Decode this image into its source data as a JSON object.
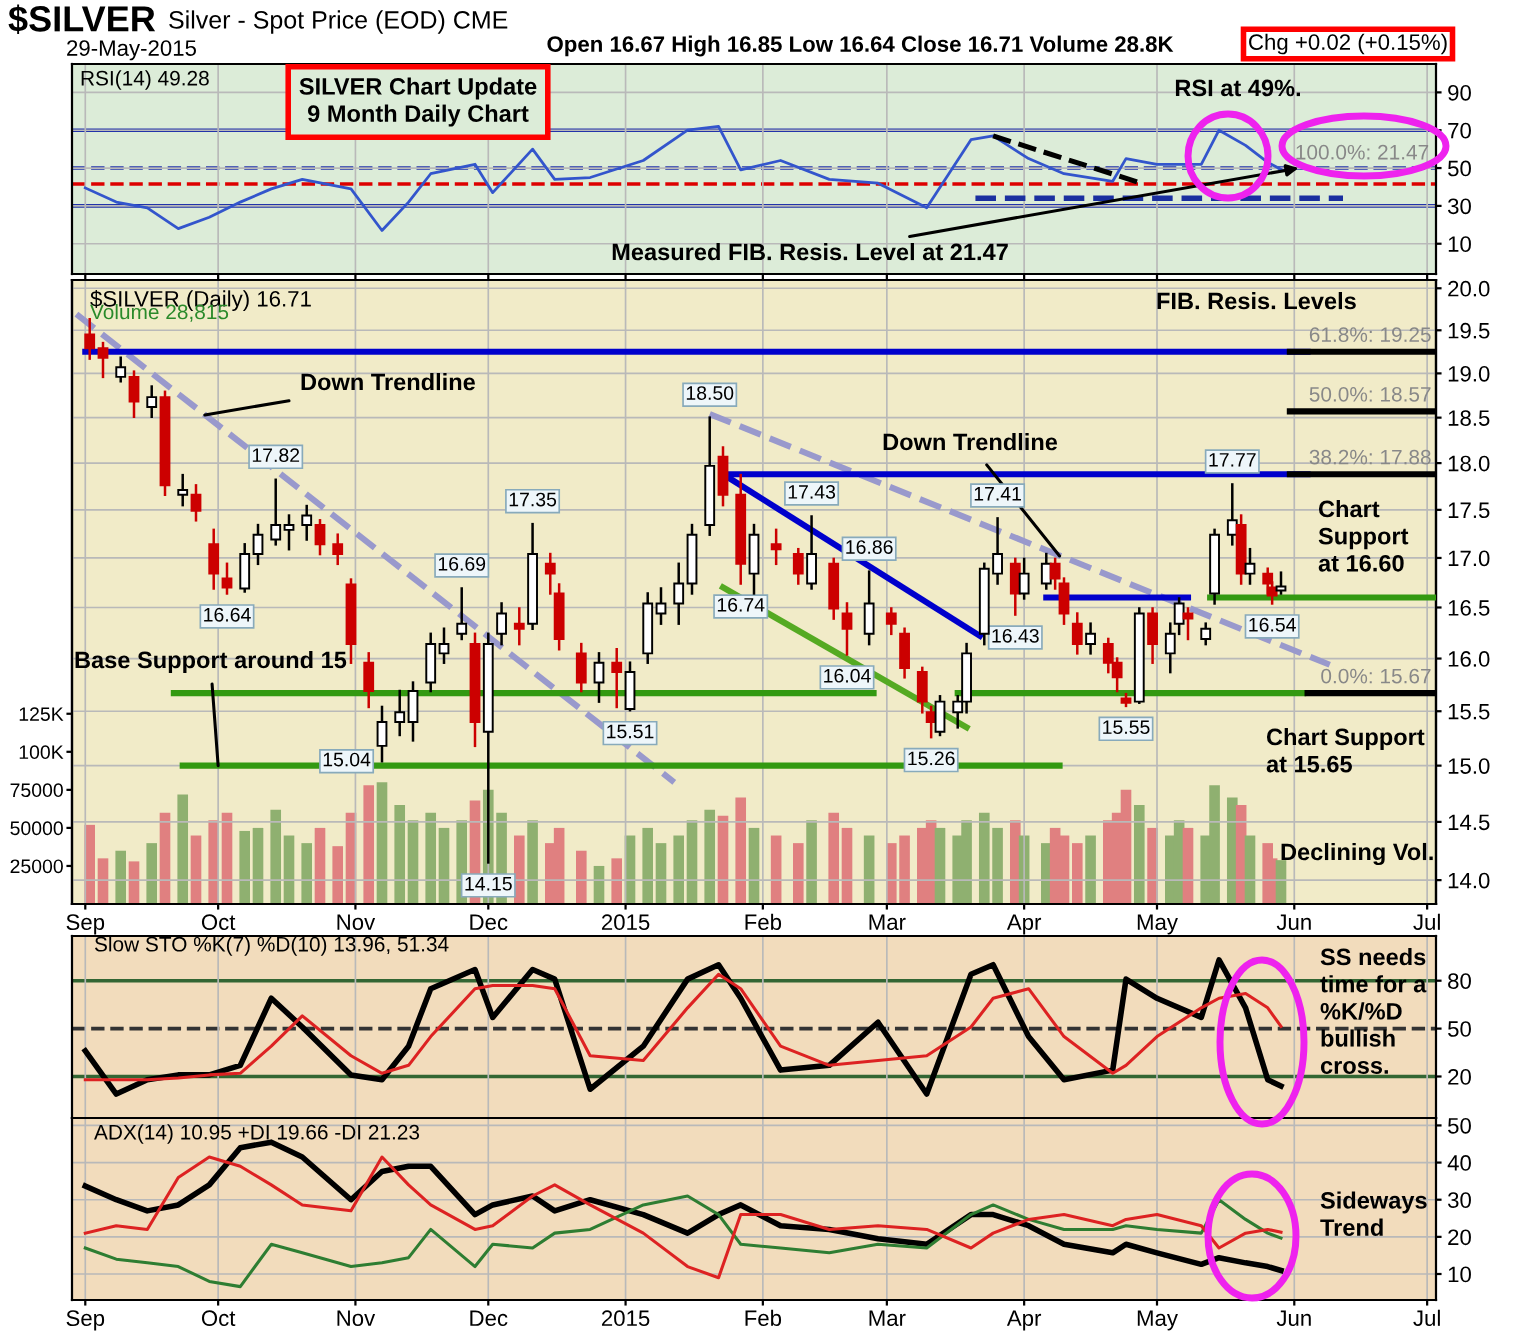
{
  "chart_data": [
    {
      "type": "line",
      "title": "$SILVER",
      "subtitle": "Silver - Spot Price (EOD) CME",
      "x": [
        "2014-09-01",
        "2014-09-08",
        "2014-09-15",
        "2014-09-22",
        "2014-09-29",
        "2014-10-06",
        "2014-10-13",
        "2014-10-20",
        "2014-10-31",
        "2014-11-07",
        "2014-11-13",
        "2014-11-18",
        "2014-11-28",
        "2014-12-02",
        "2014-12-11",
        "2014-12-16",
        "2014-12-24",
        "2015-01-05",
        "2015-01-15",
        "2015-01-22",
        "2015-01-27",
        "2015-02-05",
        "2015-02-16",
        "2015-02-27",
        "2015-03-10",
        "2015-03-20",
        "2015-03-25",
        "2015-04-02",
        "2015-04-10",
        "2015-04-21",
        "2015-04-24",
        "2015-05-01",
        "2015-05-11",
        "2015-05-15",
        "2015-05-21",
        "2015-05-26",
        "2015-05-29"
      ],
      "series": [
        {
          "color": "#3355cc",
          "values": [
            39.5,
            32,
            29,
            18,
            24,
            32,
            39,
            44,
            39,
            17,
            32,
            47,
            52,
            37,
            60,
            44,
            45,
            54,
            70,
            72,
            49,
            54,
            44,
            42,
            29,
            65,
            67,
            55,
            47,
            43,
            55,
            52,
            52,
            70,
            62,
            53,
            49.28
          ]
        },
        {
          "x": [
            "2015-03-25",
            "2015-04-28"
          ],
          "values": [
            67,
            41.6
          ],
          "color": "#000000",
          "line_style": "dashed"
        },
        {
          "x": [
            "2015-03-21",
            "2015-06-12"
          ],
          "values": [
            34,
            34
          ],
          "color": "#1a2fa0",
          "line_style": "dashed"
        }
      ],
      "xlim": [
        "2014-08-29",
        "2015-07-03"
      ],
      "xticks": [
        {
          "value": "2014-09-01",
          "label": null
        },
        {
          "value": "2014-10-01",
          "label": null
        },
        {
          "value": "2014-11-01",
          "label": null
        },
        {
          "value": "2014-12-01",
          "label": null
        },
        {
          "value": "2015-01-01",
          "label": null
        },
        {
          "value": "2015-02-01",
          "label": null
        },
        {
          "value": "2015-03-01",
          "label": null
        },
        {
          "value": "2015-04-01",
          "label": null
        },
        {
          "value": "2015-05-01",
          "label": null
        },
        {
          "value": "2015-06-01",
          "label": null
        },
        {
          "value": "2015-07-01",
          "label": null
        }
      ],
      "ylim": [
        -6,
        105
      ],
      "yticks": [
        10,
        30,
        50,
        70,
        90
      ],
      "ref_lines": [
        {
          "axis": "y",
          "value": 70,
          "color": "#2233aa"
        },
        {
          "axis": "y",
          "value": 30,
          "color": "#2233aa"
        },
        {
          "axis": "y",
          "value": 50,
          "color": "#2233aa",
          "line_style": "dashed"
        },
        {
          "axis": "y",
          "value": 41.6,
          "color": "#dd0000",
          "line_style": "dashed"
        }
      ],
      "tick_labels": "y",
      "grid": true,
      "annotations": [
        "29-May-2015",
        "Open 16.67 High 16.85 Low 16.64 Close 16.71 Volume 28.8K",
        "Chg +0.02 (+0.15%)",
        "RSI(14) 49.28",
        "SILVER Chart Update\n9 Month Daily Chart",
        "RSI at 49%.",
        "100.0%: 21.47",
        {
          "text": "Measured FIB. Resis. Level at 21.47",
          "x": "2015-06-02",
          "y": 50
        }
      ]
    },
    {
      "type": "candlestick",
      "x": [
        "2014-09-02",
        "2014-09-05",
        "2014-09-09",
        "2014-09-12",
        "2014-09-16",
        "2014-09-19",
        "2014-09-23",
        "2014-09-26",
        "2014-09-30",
        "2014-10-03",
        "2014-10-07",
        "2014-10-10",
        "2014-10-14",
        "2014-10-17",
        "2014-10-21",
        "2014-10-24",
        "2014-10-28",
        "2014-10-31",
        "2014-11-04",
        "2014-11-07",
        "2014-11-11",
        "2014-11-14",
        "2014-11-18",
        "2014-11-21",
        "2014-11-25",
        "2014-11-28",
        "2014-12-01",
        "2014-12-04",
        "2014-12-08",
        "2014-12-11",
        "2014-12-15",
        "2014-12-17",
        "2014-12-22",
        "2014-12-26",
        "2014-12-30",
        "2015-01-02",
        "2015-01-06",
        "2015-01-09",
        "2015-01-13",
        "2015-01-16",
        "2015-01-20",
        "2015-01-23",
        "2015-01-27",
        "2015-01-30",
        "2015-02-04",
        "2015-02-09",
        "2015-02-12",
        "2015-02-17",
        "2015-02-20",
        "2015-02-25",
        "2015-03-02",
        "2015-03-05",
        "2015-03-09",
        "2015-03-11",
        "2015-03-13",
        "2015-03-17",
        "2015-03-19",
        "2015-03-23",
        "2015-03-26",
        "2015-03-30",
        "2015-04-01",
        "2015-04-06",
        "2015-04-08",
        "2015-04-10",
        "2015-04-13",
        "2015-04-16",
        "2015-04-20",
        "2015-04-22",
        "2015-04-24",
        "2015-04-27",
        "2015-04-30",
        "2015-05-04",
        "2015-05-06",
        "2015-05-08",
        "2015-05-12",
        "2015-05-14",
        "2015-05-18",
        "2015-05-20",
        "2015-05-22",
        "2015-05-26",
        "2015-05-27",
        "2015-05-29"
      ],
      "log": true,
      "ohlc": [
        [
          19.45,
          19.63,
          19.17,
          19.29
        ],
        [
          19.29,
          19.35,
          18.96,
          19.18
        ],
        [
          18.96,
          19.18,
          18.91,
          19.07
        ],
        [
          18.96,
          19.02,
          18.51,
          18.68
        ],
        [
          18.62,
          18.85,
          18.51,
          18.73
        ],
        [
          18.73,
          18.79,
          17.66,
          17.76
        ],
        [
          17.66,
          17.87,
          17.55,
          17.71
        ],
        [
          17.66,
          17.76,
          17.39,
          17.49
        ],
        [
          17.14,
          17.29,
          16.69,
          16.84
        ],
        [
          16.79,
          16.94,
          16.64,
          16.7
        ],
        [
          16.69,
          17.14,
          16.66,
          17.04
        ],
        [
          17.04,
          17.34,
          16.94,
          17.24
        ],
        [
          17.19,
          17.82,
          17.14,
          17.34
        ],
        [
          17.29,
          17.44,
          17.09,
          17.34
        ],
        [
          17.34,
          17.54,
          17.19,
          17.44
        ],
        [
          17.34,
          17.39,
          17.04,
          17.14
        ],
        [
          17.14,
          17.24,
          16.94,
          17.04
        ],
        [
          16.73,
          16.78,
          15.96,
          16.14
        ],
        [
          15.96,
          16.05,
          15.54,
          15.69
        ],
        [
          15.18,
          15.54,
          15.04,
          15.4
        ],
        [
          15.4,
          15.69,
          15.28,
          15.49
        ],
        [
          15.4,
          15.77,
          15.23,
          15.69
        ],
        [
          15.77,
          16.24,
          15.69,
          16.14
        ],
        [
          16.05,
          16.29,
          15.96,
          16.14
        ],
        [
          16.24,
          16.69,
          16.19,
          16.34
        ],
        [
          16.14,
          16.24,
          15.18,
          15.4
        ],
        [
          15.31,
          16.24,
          14.15,
          16.14
        ],
        [
          16.24,
          16.54,
          16.14,
          16.44
        ],
        [
          16.34,
          16.49,
          16.14,
          16.29
        ],
        [
          16.34,
          17.35,
          16.29,
          17.04
        ],
        [
          16.94,
          17.04,
          16.64,
          16.84
        ],
        [
          16.64,
          16.73,
          16.09,
          16.19
        ],
        [
          16.05,
          16.14,
          15.69,
          15.77
        ],
        [
          15.77,
          16.05,
          15.59,
          15.96
        ],
        [
          15.96,
          16.09,
          15.54,
          15.87
        ],
        [
          15.52,
          15.96,
          15.51,
          15.87
        ],
        [
          16.05,
          16.64,
          15.96,
          16.54
        ],
        [
          16.44,
          16.69,
          16.34,
          16.54
        ],
        [
          16.54,
          16.94,
          16.34,
          16.74
        ],
        [
          16.74,
          17.34,
          16.64,
          17.24
        ],
        [
          17.34,
          18.5,
          17.24,
          17.97
        ],
        [
          18.07,
          18.17,
          17.55,
          17.66
        ],
        [
          17.66,
          17.87,
          16.74,
          16.94
        ],
        [
          16.84,
          17.34,
          16.64,
          17.24
        ],
        [
          17.14,
          17.29,
          16.94,
          17.09
        ],
        [
          17.04,
          17.09,
          16.74,
          16.84
        ],
        [
          16.74,
          17.43,
          16.69,
          17.04
        ],
        [
          16.94,
          16.99,
          16.39,
          16.49
        ],
        [
          16.44,
          16.54,
          16.04,
          16.29
        ],
        [
          16.24,
          16.86,
          16.14,
          16.54
        ],
        [
          16.44,
          16.49,
          16.24,
          16.34
        ],
        [
          16.24,
          16.29,
          15.82,
          15.91
        ],
        [
          15.87,
          15.91,
          15.49,
          15.59
        ],
        [
          15.49,
          15.54,
          15.26,
          15.4
        ],
        [
          15.31,
          15.64,
          15.28,
          15.59
        ],
        [
          15.49,
          15.64,
          15.35,
          15.59
        ],
        [
          15.59,
          16.14,
          15.49,
          16.05
        ],
        [
          16.24,
          16.94,
          16.14,
          16.89
        ],
        [
          16.84,
          17.41,
          16.74,
          17.04
        ],
        [
          16.94,
          16.99,
          16.43,
          16.64
        ],
        [
          16.64,
          16.99,
          16.59,
          16.84
        ],
        [
          16.74,
          17.04,
          16.69,
          16.94
        ],
        [
          16.94,
          16.99,
          16.69,
          16.79
        ],
        [
          16.74,
          16.79,
          16.34,
          16.44
        ],
        [
          16.34,
          16.44,
          16.05,
          16.14
        ],
        [
          16.14,
          16.34,
          16.05,
          16.24
        ],
        [
          16.14,
          16.19,
          15.87,
          15.96
        ],
        [
          15.96,
          16.0,
          15.69,
          15.82
        ],
        [
          15.62,
          15.66,
          15.55,
          15.58
        ],
        [
          15.59,
          16.49,
          15.58,
          16.44
        ],
        [
          16.44,
          16.49,
          15.96,
          16.14
        ],
        [
          16.05,
          16.34,
          15.87,
          16.24
        ],
        [
          16.34,
          16.59,
          16.24,
          16.54
        ],
        [
          16.44,
          16.49,
          16.19,
          16.39
        ],
        [
          16.19,
          16.34,
          16.14,
          16.29
        ],
        [
          16.64,
          17.29,
          16.54,
          17.24
        ],
        [
          17.24,
          17.77,
          17.14,
          17.39
        ],
        [
          17.34,
          17.44,
          16.74,
          16.84
        ],
        [
          16.84,
          17.09,
          16.74,
          16.94
        ],
        [
          16.84,
          16.89,
          16.64,
          16.74
        ],
        [
          16.7,
          16.75,
          16.54,
          16.62
        ],
        [
          16.67,
          16.85,
          16.64,
          16.71
        ]
      ],
      "colors": [
        "#cc0000",
        "#cc0000",
        "#000000",
        "#cc0000",
        "#000000",
        "#cc0000",
        "#000000",
        "#cc0000",
        "#cc0000",
        "#cc0000",
        "#000000",
        "#000000",
        "#000000",
        "#000000",
        "#000000",
        "#cc0000",
        "#cc0000",
        "#cc0000",
        "#cc0000",
        "#000000",
        "#000000",
        "#000000",
        "#000000",
        "#000000",
        "#000000",
        "#cc0000",
        "#000000",
        "#000000",
        "#cc0000",
        "#000000",
        "#cc0000",
        "#cc0000",
        "#cc0000",
        "#000000",
        "#cc0000",
        "#000000",
        "#000000",
        "#000000",
        "#000000",
        "#000000",
        "#000000",
        "#cc0000",
        "#cc0000",
        "#000000",
        "#cc0000",
        "#cc0000",
        "#000000",
        "#cc0000",
        "#cc0000",
        "#000000",
        "#cc0000",
        "#cc0000",
        "#cc0000",
        "#cc0000",
        "#000000",
        "#000000",
        "#000000",
        "#000000",
        "#000000",
        "#cc0000",
        "#000000",
        "#000000",
        "#cc0000",
        "#cc0000",
        "#cc0000",
        "#000000",
        "#cc0000",
        "#cc0000",
        "#cc0000",
        "#000000",
        "#cc0000",
        "#000000",
        "#000000",
        "#cc0000",
        "#000000",
        "#000000",
        "#000000",
        "#cc0000",
        "#000000",
        "#cc0000",
        "#cc0000",
        "#000000"
      ],
      "series": [
        {
          "type": "bar",
          "axis": "y2",
          "values": [
            52000,
            30000,
            35000,
            28000,
            40000,
            60000,
            72000,
            45000,
            55000,
            60000,
            48000,
            50000,
            62000,
            45000,
            40000,
            50000,
            38000,
            60000,
            78000,
            80000,
            65000,
            55000,
            60000,
            50000,
            55000,
            68000,
            75000,
            60000,
            45000,
            55000,
            40000,
            50000,
            35000,
            25000,
            30000,
            45000,
            50000,
            40000,
            45000,
            55000,
            62000,
            58000,
            70000,
            50000,
            45000,
            40000,
            55000,
            60000,
            50000,
            45000,
            40000,
            45000,
            50000,
            55000,
            50000,
            45000,
            55000,
            60000,
            50000,
            55000,
            45000,
            40000,
            50000,
            45000,
            40000,
            45000,
            55000,
            60000,
            75000,
            65000,
            50000,
            45000,
            55000,
            50000,
            45000,
            78000,
            70000,
            65000,
            45000,
            40000,
            30000,
            28815
          ],
          "colors": [
            "#e08080",
            "#e08080",
            "#8fb070",
            "#e08080",
            "#8fb070",
            "#e08080",
            "#8fb070",
            "#e08080",
            "#e08080",
            "#e08080",
            "#8fb070",
            "#8fb070",
            "#8fb070",
            "#8fb070",
            "#8fb070",
            "#e08080",
            "#e08080",
            "#e08080",
            "#e08080",
            "#8fb070",
            "#8fb070",
            "#8fb070",
            "#8fb070",
            "#8fb070",
            "#8fb070",
            "#e08080",
            "#8fb070",
            "#8fb070",
            "#e08080",
            "#8fb070",
            "#e08080",
            "#e08080",
            "#e08080",
            "#8fb070",
            "#e08080",
            "#8fb070",
            "#8fb070",
            "#8fb070",
            "#8fb070",
            "#8fb070",
            "#8fb070",
            "#e08080",
            "#e08080",
            "#8fb070",
            "#e08080",
            "#e08080",
            "#8fb070",
            "#e08080",
            "#e08080",
            "#8fb070",
            "#e08080",
            "#e08080",
            "#e08080",
            "#e08080",
            "#8fb070",
            "#8fb070",
            "#8fb070",
            "#8fb070",
            "#8fb070",
            "#e08080",
            "#8fb070",
            "#8fb070",
            "#e08080",
            "#e08080",
            "#e08080",
            "#8fb070",
            "#e08080",
            "#e08080",
            "#e08080",
            "#8fb070",
            "#e08080",
            "#8fb070",
            "#8fb070",
            "#e08080",
            "#8fb070",
            "#8fb070",
            "#8fb070",
            "#e08080",
            "#8fb070",
            "#e08080",
            "#e08080",
            "#8fb070"
          ]
        },
        {
          "type": "line",
          "x": [
            "2014-08-30",
            "2015-01-12"
          ],
          "values": [
            19.69,
            14.85
          ],
          "color": "#9999cc",
          "line_style": "dashed"
        },
        {
          "type": "line",
          "x": [
            "2015-01-20",
            "2015-06-09"
          ],
          "values": [
            18.54,
            15.94
          ],
          "color": "#9999cc",
          "line_style": "dashed"
        },
        {
          "type": "line",
          "x": [
            "2014-09-01",
            "2015-06-04"
          ],
          "values": [
            19.25,
            19.25
          ],
          "color": "#0000cc"
        },
        {
          "type": "line",
          "x": [
            "2015-01-23",
            "2015-06-04"
          ],
          "values": [
            17.88,
            17.88
          ],
          "color": "#0000cc"
        },
        {
          "type": "line",
          "x": [
            "2015-01-23",
            "2015-03-22"
          ],
          "values": [
            17.88,
            16.22
          ],
          "color": "#0000cc"
        },
        {
          "type": "line",
          "x": [
            "2015-01-23",
            "2015-03-19"
          ],
          "values": [
            16.7,
            15.35
          ],
          "color": "#55aa22"
        },
        {
          "type": "line",
          "x": [
            "2015-04-06",
            "2015-05-08"
          ],
          "values": [
            16.6,
            16.6
          ],
          "color": "#0000cc"
        },
        {
          "type": "line",
          "x": [
            "2015-05-13",
            "2015-07-03"
          ],
          "values": [
            16.6,
            16.6
          ],
          "color": "#339911"
        },
        {
          "type": "line",
          "x": [
            "2014-09-21",
            "2015-02-26"
          ],
          "values": [
            15.67,
            15.67
          ],
          "color": "#339911"
        },
        {
          "type": "line",
          "x": [
            "2015-03-17",
            "2015-06-03"
          ],
          "values": [
            15.67,
            15.67
          ],
          "color": "#339911"
        },
        {
          "type": "line",
          "x": [
            "2014-09-23",
            "2015-04-09"
          ],
          "values": [
            15.0,
            15.0
          ],
          "color": "#339911"
        },
        {
          "type": "line",
          "x": [
            "2015-05-31",
            "2015-07-03"
          ],
          "values": [
            19.25,
            19.25
          ],
          "color": "#000000"
        },
        {
          "type": "line",
          "x": [
            "2015-05-31",
            "2015-07-03"
          ],
          "values": [
            18.57,
            18.57
          ],
          "color": "#000000"
        },
        {
          "type": "line",
          "x": [
            "2015-05-31",
            "2015-07-03"
          ],
          "values": [
            17.88,
            17.88
          ],
          "color": "#000000"
        },
        {
          "type": "line",
          "x": [
            "2015-06-04",
            "2015-07-03"
          ],
          "values": [
            15.67,
            15.67
          ],
          "color": "#000000"
        }
      ],
      "xlim": [
        "2014-08-29",
        "2015-07-03"
      ],
      "xticks": [
        {
          "value": "2014-09-01",
          "label": "Sep"
        },
        {
          "value": "2014-10-01",
          "label": "Oct"
        },
        {
          "value": "2014-11-01",
          "label": "Nov"
        },
        {
          "value": "2014-12-01",
          "label": "Dec"
        },
        {
          "value": "2015-01-01",
          "label": "2015"
        },
        {
          "value": "2015-02-01",
          "label": "Feb"
        },
        {
          "value": "2015-03-01",
          "label": "Mar"
        },
        {
          "value": "2015-04-01",
          "label": "Apr"
        },
        {
          "value": "2015-05-01",
          "label": "May"
        },
        {
          "value": "2015-06-01",
          "label": "Jun"
        },
        {
          "value": "2015-07-01",
          "label": "Jul"
        }
      ],
      "ylim": [
        13.8,
        20.1
      ],
      "yticks": [
        {
          "value": 14,
          "label": "14.0"
        },
        14.5,
        {
          "value": 15,
          "label": "15.0"
        },
        15.5,
        {
          "value": 16,
          "label": "16.0"
        },
        16.5,
        {
          "value": 17,
          "label": "17.0"
        },
        17.5,
        {
          "value": 18,
          "label": "18.0"
        },
        18.5,
        {
          "value": 19,
          "label": "19.0"
        },
        19.5,
        {
          "value": 20,
          "label": "20.0"
        }
      ],
      "y2lim": [
        0,
        410000
      ],
      "y2ticks": [
        25000,
        50000,
        75000,
        {
          "value": 100000,
          "label": "100K"
        },
        {
          "value": 125000,
          "label": "125K"
        }
      ],
      "grid": true,
      "annotations": [
        "$SILVER (Daily) 16.71",
        "Volume 28,815",
        "FIB. Resis. Levels",
        "Chart\nSupport\nat 16.60",
        "Chart Support\nat 15.65",
        "Declining Vol.",
        {
          "text": "Down Trendline",
          "x": "2014-09-28",
          "y": 18.53
        },
        {
          "text": "Down Trendline",
          "x": "2015-04-09",
          "y": 17.02
        },
        {
          "text": "Base Support around 15",
          "x": "2014-10-01",
          "y": 15.0
        },
        {
          "text": "61.8%: 19.25",
          "x": "2015-07-02",
          "y": 19.25
        },
        {
          "text": "50.0%: 18.57",
          "x": "2015-07-02",
          "y": 18.57
        },
        {
          "text": "38.2%: 17.88",
          "x": "2015-07-02",
          "y": 17.88
        },
        {
          "text": "0.0%: 15.67",
          "x": "2015-07-02",
          "y": 15.67
        },
        {
          "text": "17.82",
          "x": "2014-10-14",
          "y": 17.82
        },
        {
          "text": "16.64",
          "x": "2014-10-03",
          "y": 16.64
        },
        {
          "text": "15.04",
          "x": "2014-11-07",
          "y": 15.04
        },
        {
          "text": "16.69",
          "x": "2014-11-25",
          "y": 16.69
        },
        {
          "text": "14.15",
          "x": "2014-12-01",
          "y": 14.15
        },
        {
          "text": "17.35",
          "x": "2014-12-11",
          "y": 17.35
        },
        {
          "text": "15.51",
          "x": "2015-01-02",
          "y": 15.51
        },
        {
          "text": "18.50",
          "x": "2015-01-20",
          "y": 18.5
        },
        {
          "text": "16.74",
          "x": "2015-01-27",
          "y": 16.74
        },
        {
          "text": "17.43",
          "x": "2015-02-12",
          "y": 17.43
        },
        {
          "text": "16.86",
          "x": "2015-02-25",
          "y": 16.86
        },
        {
          "text": "16.04",
          "x": "2015-02-20",
          "y": 16.04
        },
        {
          "text": "15.26",
          "x": "2015-03-11",
          "y": 15.26
        },
        {
          "text": "17.41",
          "x": "2015-03-26",
          "y": 17.41
        },
        {
          "text": "16.43",
          "x": "2015-03-30",
          "y": 16.43
        },
        {
          "text": "15.55",
          "x": "2015-04-24",
          "y": 15.55
        },
        {
          "text": "17.77",
          "x": "2015-05-18",
          "y": 17.77
        },
        {
          "text": "16.54",
          "x": "2015-05-27",
          "y": 16.54
        }
      ]
    },
    {
      "type": "line",
      "x": [
        "2014-09-01",
        "2014-09-08",
        "2014-09-15",
        "2014-09-22",
        "2014-09-29",
        "2014-10-06",
        "2014-10-13",
        "2014-10-20",
        "2014-10-31",
        "2014-11-07",
        "2014-11-13",
        "2014-11-18",
        "2014-11-28",
        "2014-12-02",
        "2014-12-11",
        "2014-12-16",
        "2014-12-24",
        "2015-01-05",
        "2015-01-15",
        "2015-01-22",
        "2015-01-27",
        "2015-02-05",
        "2015-02-16",
        "2015-02-27",
        "2015-03-10",
        "2015-03-20",
        "2015-03-25",
        "2015-04-02",
        "2015-04-10",
        "2015-04-21",
        "2015-04-24",
        "2015-05-01",
        "2015-05-11",
        "2015-05-15",
        "2015-05-21",
        "2015-05-26",
        "2015-05-29"
      ],
      "series": [
        {
          "color": "#000000",
          "values": [
            36,
            9,
            18,
            21,
            21,
            27,
            69,
            51,
            21,
            18,
            39,
            75,
            87,
            57,
            87,
            81,
            12,
            39,
            81,
            90,
            69,
            24,
            27,
            54,
            9,
            84,
            90,
            45,
            18,
            24,
            81,
            69,
            57,
            93,
            63,
            18,
            13.96
          ]
        },
        {
          "color": "#dd2222",
          "values": [
            18,
            18,
            18,
            19,
            21,
            22,
            39,
            58,
            33,
            22,
            27,
            45,
            75,
            77,
            77,
            75,
            33,
            30,
            63,
            84,
            75,
            39,
            27,
            30,
            33,
            51,
            69,
            75,
            45,
            22,
            27,
            45,
            63,
            69,
            72,
            63,
            51.34
          ]
        }
      ],
      "xlim": [
        "2014-08-29",
        "2015-07-03"
      ],
      "xticks": [
        {
          "value": "2014-09-01",
          "label": null
        },
        {
          "value": "2014-10-01",
          "label": null
        },
        {
          "value": "2014-11-01",
          "label": null
        },
        {
          "value": "2014-12-01",
          "label": null
        },
        {
          "value": "2015-01-01",
          "label": null
        },
        {
          "value": "2015-02-01",
          "label": null
        },
        {
          "value": "2015-03-01",
          "label": null
        },
        {
          "value": "2015-04-01",
          "label": null
        },
        {
          "value": "2015-05-01",
          "label": null
        },
        {
          "value": "2015-06-01",
          "label": null
        },
        {
          "value": "2015-07-01",
          "label": null
        }
      ],
      "ylim": [
        -6,
        108
      ],
      "yticks": [
        20,
        50,
        80
      ],
      "ref_lines": [
        {
          "axis": "y",
          "value": 80,
          "color": "#336633"
        },
        {
          "axis": "y",
          "value": 20,
          "color": "#336633"
        },
        {
          "axis": "y",
          "value": 50,
          "color": "#333333",
          "line_style": "dashed"
        }
      ],
      "tick_labels": "y",
      "grid": "x",
      "annotations": [
        "Slow STO %K(7) %D(10) 13.96, 51.34",
        "SS needs\ntime for a\n%K/%D\nbullish\ncross."
      ]
    },
    {
      "type": "line",
      "x": [
        "2014-09-01",
        "2014-09-08",
        "2014-09-15",
        "2014-09-22",
        "2014-09-29",
        "2014-10-06",
        "2014-10-13",
        "2014-10-20",
        "2014-10-31",
        "2014-11-07",
        "2014-11-13",
        "2014-11-18",
        "2014-11-28",
        "2014-12-02",
        "2014-12-11",
        "2014-12-16",
        "2014-12-24",
        "2015-01-05",
        "2015-01-15",
        "2015-01-22",
        "2015-01-27",
        "2015-02-05",
        "2015-02-16",
        "2015-02-27",
        "2015-03-10",
        "2015-03-20",
        "2015-03-25",
        "2015-04-02",
        "2015-04-10",
        "2015-04-21",
        "2015-04-24",
        "2015-05-01",
        "2015-05-11",
        "2015-05-15",
        "2015-05-21",
        "2015-05-26",
        "2015-05-29"
      ],
      "series": [
        {
          "color": "#000000",
          "values": [
            33.7,
            30,
            27,
            28.6,
            34,
            44,
            45.5,
            41.5,
            30,
            37.6,
            39,
            39,
            26,
            28.6,
            31,
            27,
            30,
            26,
            21,
            26,
            28.6,
            23,
            22,
            19.5,
            18,
            26,
            26,
            23,
            18,
            15.7,
            18,
            15.7,
            12.6,
            14.4,
            13,
            12,
            10.95
          ]
        },
        {
          "color": "#2e7d32",
          "values": [
            17,
            14,
            13,
            12,
            8,
            6.6,
            18,
            15.7,
            12,
            13,
            14.4,
            22,
            12,
            18,
            17,
            21,
            22,
            28.6,
            31,
            26,
            18,
            17,
            15.7,
            18,
            17,
            26,
            28.6,
            24.7,
            22,
            22,
            23,
            22,
            21,
            30,
            24.7,
            21,
            19.66
          ]
        },
        {
          "color": "#dd2222",
          "values": [
            21,
            23,
            22,
            36,
            41.5,
            39,
            34,
            28.6,
            27,
            41.5,
            34,
            28.6,
            22,
            23,
            31,
            34,
            28.6,
            21,
            12,
            9,
            26,
            26,
            22,
            23,
            22,
            17,
            21,
            24.7,
            26,
            23,
            24.7,
            26,
            23,
            17,
            21,
            22,
            21.23
          ]
        }
      ],
      "xlim": [
        "2014-08-29",
        "2015-07-03"
      ],
      "xticks": [
        {
          "value": "2014-09-01",
          "label": "Sep"
        },
        {
          "value": "2014-10-01",
          "label": "Oct"
        },
        {
          "value": "2014-11-01",
          "label": "Nov"
        },
        {
          "value": "2014-12-01",
          "label": "Dec"
        },
        {
          "value": "2015-01-01",
          "label": "2015"
        },
        {
          "value": "2015-02-01",
          "label": "Feb"
        },
        {
          "value": "2015-03-01",
          "label": "Mar"
        },
        {
          "value": "2015-04-01",
          "label": "Apr"
        },
        {
          "value": "2015-05-01",
          "label": "May"
        },
        {
          "value": "2015-06-01",
          "label": "Jun"
        },
        {
          "value": "2015-07-01",
          "label": "Jul"
        }
      ],
      "ylim": [
        3,
        52
      ],
      "yticks": [
        10,
        20,
        30,
        40,
        50
      ],
      "grid": true,
      "annotations": [
        "ADX(14) 10.95 +DI 19.66 -DI 21.23",
        "Sideways\nTrend"
      ]
    }
  ]
}
